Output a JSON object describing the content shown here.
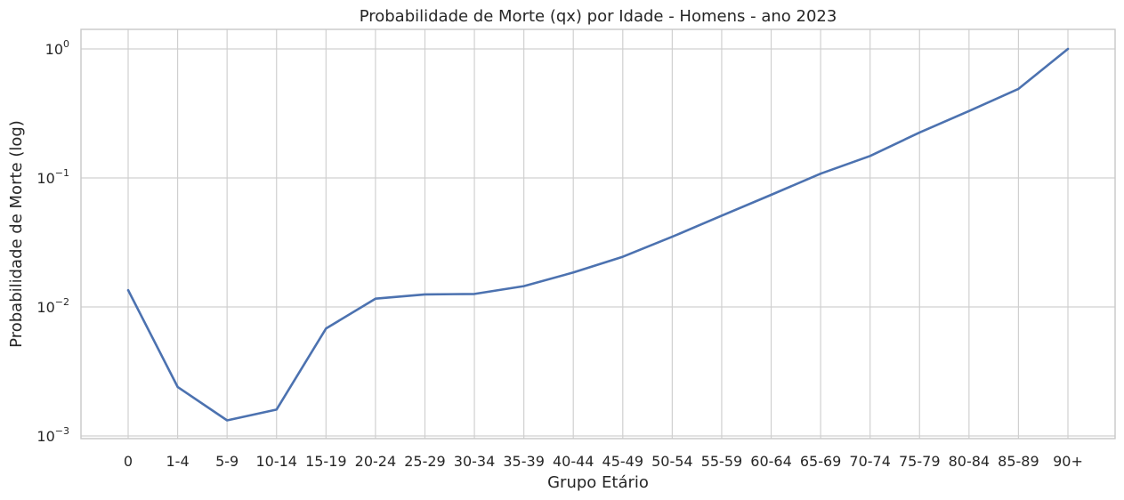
{
  "chart_data": {
    "type": "line",
    "title": "Probabilidade de Morte (qx) por Idade - Homens - ano 2023",
    "xlabel": "Grupo Etário",
    "ylabel": "Probabilidade de Morte (log)",
    "yscale": "log",
    "ylim": [
      0.001,
      1
    ],
    "y_ticks": [
      {
        "value": 0.001,
        "base": "10",
        "exp": "−3"
      },
      {
        "value": 0.01,
        "base": "10",
        "exp": "−2"
      },
      {
        "value": 0.1,
        "base": "10",
        "exp": "−1"
      },
      {
        "value": 1,
        "base": "10",
        "exp": "0"
      }
    ],
    "grid": true,
    "categories": [
      "0",
      "1-4",
      "5-9",
      "10-14",
      "15-19",
      "20-24",
      "25-29",
      "30-34",
      "35-39",
      "40-44",
      "45-49",
      "50-54",
      "55-59",
      "60-64",
      "65-69",
      "70-74",
      "75-79",
      "80-84",
      "85-89",
      "90+"
    ],
    "values": [
      0.0135,
      0.0024,
      0.00132,
      0.0016,
      0.0068,
      0.0116,
      0.0125,
      0.0126,
      0.0145,
      0.0185,
      0.0245,
      0.035,
      0.051,
      0.074,
      0.108,
      0.148,
      0.225,
      0.33,
      0.49,
      1.0
    ],
    "line_color": "#4c72b0"
  }
}
